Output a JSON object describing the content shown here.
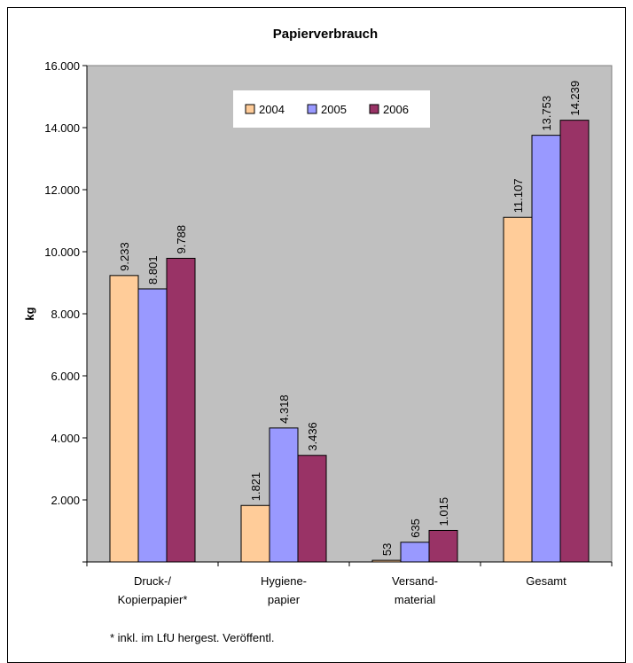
{
  "chart_data": {
    "type": "bar",
    "title": "Papierverbrauch",
    "ylabel": "kg",
    "xlabel": "",
    "ylim": [
      0,
      16000
    ],
    "yticks": [
      "",
      "2.000",
      "4.000",
      "6.000",
      "8.000",
      "10.000",
      "12.000",
      "14.000",
      "16.000"
    ],
    "grid": false,
    "legend_position": "top-center",
    "categories": [
      [
        "Druck-/",
        "Kopierpapier*"
      ],
      [
        "Hygiene-",
        "papier"
      ],
      [
        "Versand-",
        "material"
      ],
      [
        "Gesamt"
      ]
    ],
    "series": [
      {
        "name": "2004",
        "color": "#FFCC99",
        "values": [
          9233,
          1821,
          53,
          11107
        ],
        "labels": [
          "9.233",
          "1.821",
          "53",
          "11.107"
        ]
      },
      {
        "name": "2005",
        "color": "#9999FF",
        "values": [
          8801,
          4318,
          635,
          13753
        ],
        "labels": [
          "8.801",
          "4.318",
          "635",
          "13.753"
        ]
      },
      {
        "name": "2006",
        "color": "#993366",
        "values": [
          9788,
          3436,
          1015,
          14239
        ],
        "labels": [
          "9.788",
          "3.436",
          "1.015",
          "14.239"
        ]
      }
    ],
    "plot_background": "#C0C0C0",
    "footnote": "* inkl. im LfU hergest. Veröffentl."
  }
}
